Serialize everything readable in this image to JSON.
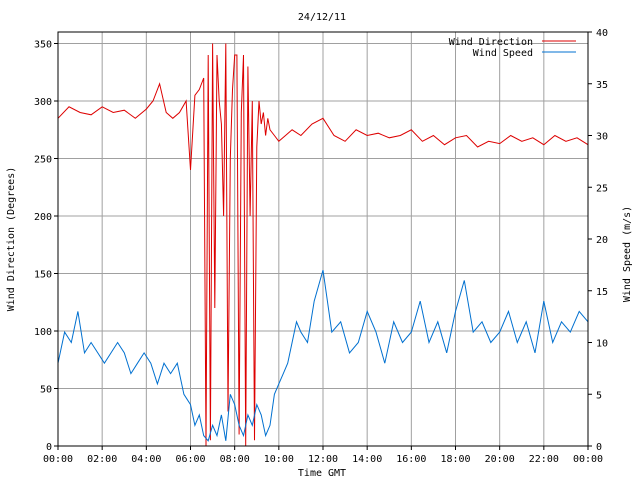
{
  "chart_data": {
    "type": "line",
    "title": "24/12/11",
    "xlabel": "Time GMT",
    "ylabel_left": "Wind Direction (Degrees)",
    "ylabel_right": "Wind Speed (m/s)",
    "x_ticks": [
      "00:00",
      "02:00",
      "04:00",
      "06:00",
      "08:00",
      "10:00",
      "12:00",
      "14:00",
      "16:00",
      "18:00",
      "20:00",
      "22:00",
      "00:00"
    ],
    "y_left_ticks": [
      0,
      50,
      100,
      150,
      200,
      250,
      300,
      350
    ],
    "y_right_ticks": [
      0,
      5,
      10,
      15,
      20,
      25,
      30,
      35,
      40
    ],
    "x_range_hours": [
      0,
      24
    ],
    "ylim_left": [
      0,
      360
    ],
    "ylim_right": [
      0,
      40
    ],
    "grid": true,
    "legend_position": "top-right",
    "series": [
      {
        "name": "Wind Direction",
        "axis": "left",
        "color": "#dd0000",
        "x_hours": [
          0,
          0.5,
          1,
          1.5,
          2,
          2.5,
          3,
          3.5,
          4,
          4.3,
          4.6,
          4.9,
          5.2,
          5.5,
          5.8,
          6.0,
          6.2,
          6.4,
          6.6,
          6.7,
          6.8,
          6.9,
          7.0,
          7.1,
          7.2,
          7.3,
          7.4,
          7.5,
          7.6,
          7.7,
          7.8,
          7.9,
          8.0,
          8.1,
          8.2,
          8.3,
          8.4,
          8.5,
          8.6,
          8.7,
          8.8,
          8.9,
          9.0,
          9.1,
          9.2,
          9.3,
          9.4,
          9.5,
          9.6,
          9.8,
          10.0,
          10.3,
          10.6,
          11,
          11.5,
          12,
          12.5,
          13,
          13.5,
          14,
          14.5,
          15,
          15.5,
          16,
          16.5,
          17,
          17.5,
          18,
          18.5,
          19,
          19.5,
          20,
          20.5,
          21,
          21.5,
          22,
          22.5,
          23,
          23.5,
          24
        ],
        "values": [
          285,
          295,
          290,
          288,
          295,
          290,
          292,
          285,
          293,
          300,
          315,
          290,
          285,
          290,
          300,
          240,
          305,
          310,
          320,
          0,
          340,
          5,
          350,
          120,
          340,
          300,
          280,
          200,
          350,
          30,
          250,
          310,
          340,
          340,
          10,
          290,
          340,
          0,
          330,
          200,
          300,
          5,
          260,
          300,
          280,
          290,
          270,
          285,
          275,
          270,
          265,
          270,
          275,
          270,
          280,
          285,
          270,
          265,
          275,
          270,
          272,
          268,
          270,
          275,
          265,
          270,
          262,
          268,
          270,
          260,
          265,
          263,
          270,
          265,
          268,
          262,
          270,
          265,
          268,
          262
        ]
      },
      {
        "name": "Wind Speed",
        "axis": "right",
        "color": "#0070d0",
        "x_hours": [
          0,
          0.3,
          0.6,
          0.9,
          1.2,
          1.5,
          1.8,
          2.1,
          2.4,
          2.7,
          3.0,
          3.3,
          3.6,
          3.9,
          4.2,
          4.5,
          4.8,
          5.1,
          5.4,
          5.7,
          6.0,
          6.2,
          6.4,
          6.6,
          6.8,
          7.0,
          7.2,
          7.4,
          7.6,
          7.8,
          8.0,
          8.2,
          8.4,
          8.6,
          8.8,
          9.0,
          9.2,
          9.4,
          9.6,
          9.8,
          10.0,
          10.2,
          10.4,
          10.6,
          10.8,
          11,
          11.3,
          11.6,
          12,
          12.4,
          12.8,
          13.2,
          13.6,
          14,
          14.4,
          14.8,
          15.2,
          15.6,
          16,
          16.4,
          16.8,
          17.2,
          17.6,
          18,
          18.4,
          18.8,
          19.2,
          19.6,
          20,
          20.4,
          20.8,
          21.2,
          21.6,
          22,
          22.4,
          22.8,
          23.2,
          23.6,
          24
        ],
        "values": [
          8,
          11,
          10,
          13,
          9,
          10,
          9,
          8,
          9,
          10,
          9,
          7,
          8,
          9,
          8,
          6,
          8,
          7,
          8,
          5,
          4,
          2,
          3,
          1,
          0.5,
          2,
          1,
          3,
          0.5,
          5,
          4,
          2,
          1,
          3,
          2,
          4,
          3,
          1,
          2,
          5,
          6,
          7,
          8,
          10,
          12,
          11,
          10,
          14,
          17,
          11,
          12,
          9,
          10,
          13,
          11,
          8,
          12,
          10,
          11,
          14,
          10,
          12,
          9,
          13,
          16,
          11,
          12,
          10,
          11,
          13,
          10,
          12,
          9,
          14,
          10,
          12,
          11,
          13,
          12
        ]
      }
    ]
  }
}
